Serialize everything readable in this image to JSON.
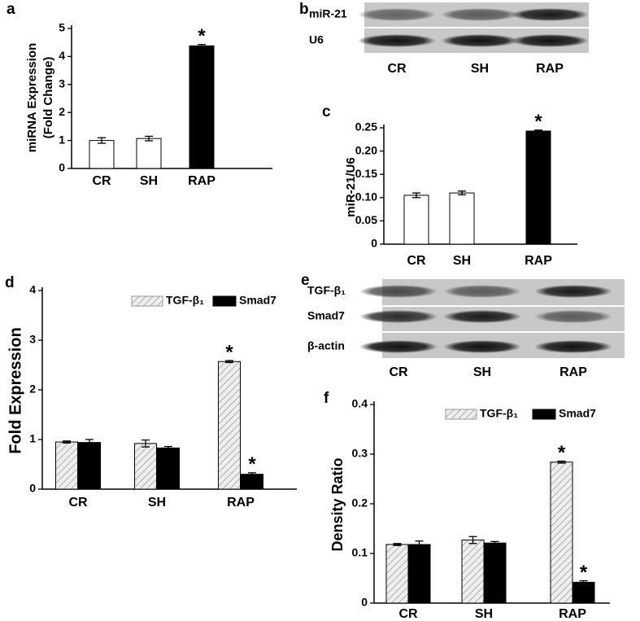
{
  "chart_data": [
    {
      "type": "bar",
      "panel": "a",
      "ylabel": [
        "miRNA Expression",
        "(Fold Change)"
      ],
      "categories": [
        "CR",
        "SH",
        "RAP"
      ],
      "values": [
        1.0,
        1.07,
        4.38
      ],
      "errors": [
        0.1,
        0.08,
        0.05
      ],
      "colors": [
        "#ffffff",
        "#ffffff",
        "#000000"
      ],
      "ylim": [
        0,
        5
      ],
      "yticks": [
        0,
        1,
        2,
        3,
        4,
        5
      ],
      "annotations": [
        {
          "text": "*",
          "category": "RAP"
        }
      ]
    },
    {
      "type": "bar",
      "panel": "c",
      "ylabel": [
        "miR-21/U6"
      ],
      "categories": [
        "CR",
        "SH",
        "RAP"
      ],
      "values": [
        0.105,
        0.11,
        0.243
      ],
      "errors": [
        0.005,
        0.004,
        0.002
      ],
      "colors": [
        "#ffffff",
        "#ffffff",
        "#000000"
      ],
      "ylim": [
        0,
        0.25
      ],
      "yticks": [
        0,
        0.05,
        {
          "value": 0.1,
          "label": "0.10"
        },
        0.15,
        {
          "value": 0.2,
          "label": "0.20"
        },
        0.25
      ],
      "annotations": [
        {
          "text": "*",
          "category": "RAP"
        }
      ]
    },
    {
      "type": "grouped-bar",
      "panel": "d",
      "ylabel": [
        "Fold Expression"
      ],
      "categories": [
        "CR",
        "SH",
        "RAP"
      ],
      "series": [
        {
          "name": "TGF-β₁",
          "color": "#e6e6e6",
          "hatch": true,
          "values": [
            0.95,
            0.92,
            2.57
          ],
          "errors": [
            0.02,
            0.07,
            0.02
          ]
        },
        {
          "name": "Smad7",
          "color": "#000000",
          "hatch": false,
          "values": [
            0.94,
            0.83,
            0.3
          ],
          "errors": [
            0.06,
            0.03,
            0.03
          ]
        }
      ],
      "ylim": [
        0,
        4
      ],
      "yticks": [
        0,
        1,
        2,
        3,
        4
      ],
      "annotations": [
        {
          "text": "*",
          "category": "RAP",
          "series": "TGF-β₁"
        },
        {
          "text": "*",
          "category": "RAP",
          "series": "Smad7"
        }
      ]
    },
    {
      "type": "grouped-bar",
      "panel": "f",
      "ylabel": [
        "Density Ratio"
      ],
      "categories": [
        "CR",
        "SH",
        "RAP"
      ],
      "series": [
        {
          "name": "TGF-β₁",
          "color": "#e6e6e6",
          "hatch": true,
          "values": [
            0.118,
            0.127,
            0.284
          ],
          "errors": [
            0.002,
            0.007,
            0.002
          ]
        },
        {
          "name": "Smad7",
          "color": "#000000",
          "hatch": false,
          "values": [
            0.118,
            0.121,
            0.042
          ],
          "errors": [
            0.007,
            0.003,
            0.003
          ]
        }
      ],
      "ylim": [
        0,
        0.4
      ],
      "yticks": [
        0,
        0.1,
        0.2,
        0.3,
        0.4
      ],
      "annotations": [
        {
          "text": "*",
          "category": "RAP",
          "series": "TGF-β₁"
        },
        {
          "text": "*",
          "category": "RAP",
          "series": "Smad7"
        }
      ]
    }
  ],
  "blots": [
    {
      "panel": "b",
      "rows": [
        "miR-21",
        "U6"
      ],
      "lanes": [
        "CR",
        "SH",
        "RAP"
      ]
    },
    {
      "panel": "e",
      "rows": [
        "TGF-β₁",
        "Smad7",
        "β-actin"
      ],
      "lanes": [
        "CR",
        "SH",
        "RAP"
      ]
    }
  ]
}
